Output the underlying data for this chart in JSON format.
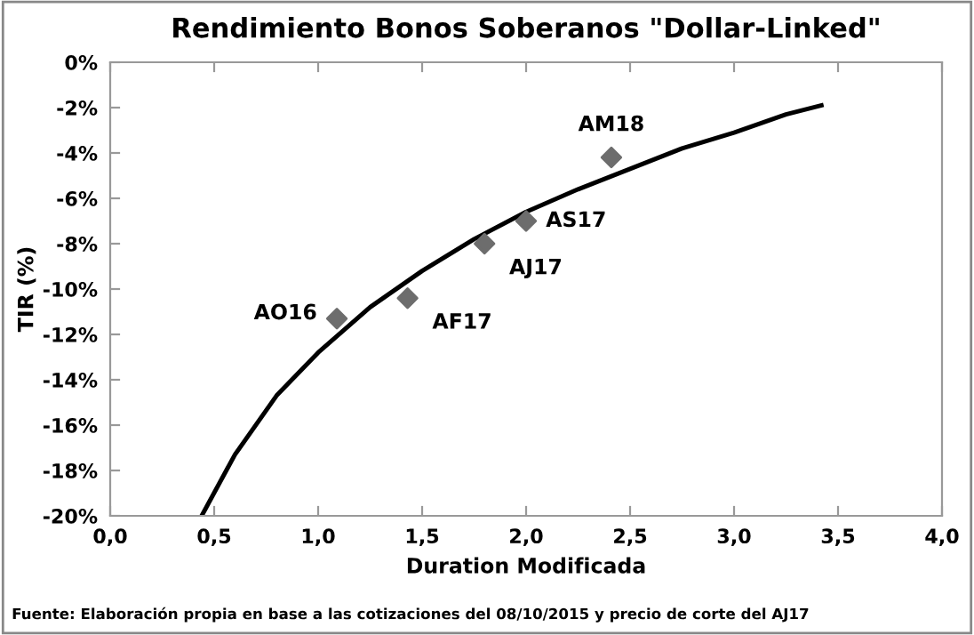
{
  "chart_data": {
    "type": "scatter",
    "title": "Rendimiento Bonos Soberanos \"Dollar-Linked\"",
    "xlabel": "Duration Modificada",
    "ylabel": "TIR (%)",
    "series": [
      {
        "color": "#6d6d6d",
        "marker": "diamond",
        "x": [
          1.09,
          1.43,
          1.8,
          2.0,
          2.41
        ],
        "values": [
          -11.3,
          -10.4,
          -8.0,
          -7.0,
          -4.2
        ]
      },
      {
        "type": "line",
        "color": "#000000",
        "marker": "none",
        "line_style": "solid",
        "x": [
          0.44,
          0.6,
          0.8,
          1.0,
          1.25,
          1.5,
          1.75,
          2.0,
          2.25,
          2.5,
          2.75,
          3.0,
          3.25,
          3.42
        ],
        "values": [
          -20.0,
          -17.3,
          -14.7,
          -12.8,
          -10.8,
          -9.2,
          -7.8,
          -6.6,
          -5.6,
          -4.7,
          -3.8,
          -3.1,
          -2.3,
          -1.9
        ]
      }
    ],
    "annotations": [
      {
        "text": "AO16",
        "x": 1.09,
        "y": -11.3
      },
      {
        "text": "AF17",
        "x": 1.43,
        "y": -10.4
      },
      {
        "text": "AJ17",
        "x": 1.8,
        "y": -8.0
      },
      {
        "text": "AS17",
        "x": 2.0,
        "y": -7.0
      },
      {
        "text": "AM18",
        "x": 2.41,
        "y": -4.2
      },
      "Fuente: Elaboración propia en base a las cotizaciones del 08/10/2015 y precio de corte del AJ17"
    ],
    "xlim": [
      0,
      4
    ],
    "xticks": [
      {
        "value": 0,
        "label": "0,0"
      },
      {
        "value": 0.5,
        "label": "0,5"
      },
      {
        "value": 1,
        "label": "1,0"
      },
      {
        "value": 1.5,
        "label": "1,5"
      },
      {
        "value": 2,
        "label": "2,0"
      },
      {
        "value": 2.5,
        "label": "2,5"
      },
      {
        "value": 3,
        "label": "3,0"
      },
      {
        "value": 3.5,
        "label": "3,5"
      },
      {
        "value": 4,
        "label": "4,0"
      }
    ],
    "ylim": [
      -20,
      0
    ],
    "yticks": [
      {
        "value": -20,
        "label": "-20%"
      },
      {
        "value": -18,
        "label": "-18%"
      },
      {
        "value": -16,
        "label": "-16%"
      },
      {
        "value": -14,
        "label": "-14%"
      },
      {
        "value": -12,
        "label": "-12%"
      },
      {
        "value": -10,
        "label": "-10%"
      },
      {
        "value": -8,
        "label": "-8%"
      },
      {
        "value": -6,
        "label": "-6%"
      },
      {
        "value": -4,
        "label": "-4%"
      },
      {
        "value": -2,
        "label": "-2%"
      },
      {
        "value": 0,
        "label": "0%"
      }
    ],
    "grid": false
  }
}
